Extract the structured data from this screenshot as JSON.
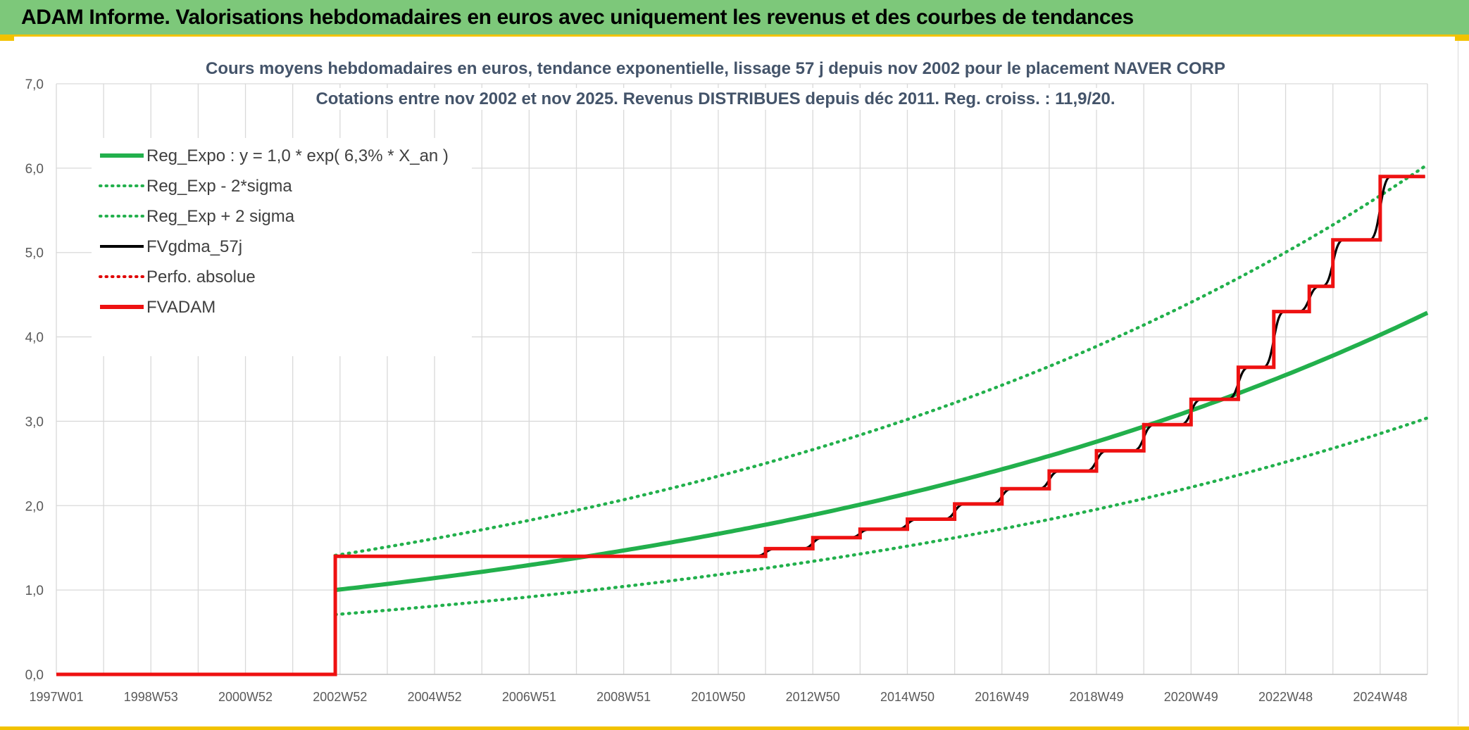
{
  "header": {
    "title": "ADAM Informe. Valorisations hebdomadaires en euros avec uniquement les revenus et des courbes de tendances"
  },
  "chart_data": {
    "type": "line",
    "title": "Cours moyens hebdomadaires en euros, tendance exponentielle, lissage 57 j depuis nov 2002 pour le placement NAVER CORP",
    "subtitle": "Cotations entre nov 2002 et nov 2025. Revenus DISTRIBUES depuis déc 2011. Reg. croiss. : 11,9/20.",
    "xlabel": "",
    "ylabel": "",
    "x_ticks": [
      "1997W01",
      "1998W53",
      "2000W52",
      "2002W52",
      "2004W52",
      "2006W51",
      "2008W51",
      "2010W50",
      "2012W50",
      "2014W50",
      "2016W49",
      "2018W49",
      "2020W49",
      "2022W48",
      "2024W48"
    ],
    "x_tick_years": [
      1997.0,
      1999.0,
      2001.0,
      2003.0,
      2005.0,
      2007.0,
      2009.0,
      2011.0,
      2013.0,
      2015.0,
      2017.0,
      2019.0,
      2021.0,
      2023.0,
      2025.0
    ],
    "xlim": [
      1997.0,
      2026.0
    ],
    "ylim": [
      0,
      7
    ],
    "y_ticks": [
      "0,0",
      "1,0",
      "2,0",
      "3,0",
      "4,0",
      "5,0",
      "6,0",
      "7,0"
    ],
    "grid": true,
    "legend_position": "top-left",
    "regression": {
      "start": 2002.9,
      "base": 1.0,
      "rate_pct_per_year": 6.3,
      "band_factor": 1.41
    },
    "legend": [
      {
        "label": "Reg_Expo : y = 1,0 * exp( 6,3% *  X_an )",
        "color": "#22b04c",
        "style": "solid-thick"
      },
      {
        "label": "Reg_Exp - 2*sigma",
        "color": "#22b04c",
        "style": "dotted"
      },
      {
        "label": "Reg_Exp + 2 sigma",
        "color": "#22b04c",
        "style": "dotted"
      },
      {
        "label": "FVgdma_57j",
        "color": "#000000",
        "style": "solid"
      },
      {
        "label": "Perfo. absolue",
        "color": "#e00000",
        "style": "dotted"
      },
      {
        "label": "FVADAM",
        "color": "#ee1111",
        "style": "solid-thick"
      }
    ],
    "series": [
      {
        "name": "FVADAM",
        "type": "step",
        "points": [
          [
            1997.0,
            0.0
          ],
          [
            2002.9,
            0.0
          ],
          [
            2002.9,
            1.4
          ],
          [
            2012.0,
            1.4
          ],
          [
            2012.0,
            1.49
          ],
          [
            2013.0,
            1.49
          ],
          [
            2013.0,
            1.62
          ],
          [
            2014.0,
            1.62
          ],
          [
            2014.0,
            1.72
          ],
          [
            2015.0,
            1.72
          ],
          [
            2015.0,
            1.84
          ],
          [
            2016.0,
            1.84
          ],
          [
            2016.0,
            2.02
          ],
          [
            2017.0,
            2.02
          ],
          [
            2017.0,
            2.2
          ],
          [
            2018.0,
            2.2
          ],
          [
            2018.0,
            2.41
          ],
          [
            2019.0,
            2.41
          ],
          [
            2019.0,
            2.65
          ],
          [
            2020.0,
            2.65
          ],
          [
            2020.0,
            2.96
          ],
          [
            2021.0,
            2.96
          ],
          [
            2021.0,
            3.26
          ],
          [
            2022.0,
            3.26
          ],
          [
            2022.0,
            3.64
          ],
          [
            2022.75,
            3.64
          ],
          [
            2022.75,
            4.3
          ],
          [
            2023.5,
            4.3
          ],
          [
            2023.5,
            4.6
          ],
          [
            2024.0,
            4.6
          ],
          [
            2024.0,
            5.15
          ],
          [
            2025.0,
            5.15
          ],
          [
            2025.0,
            5.9
          ],
          [
            2025.95,
            5.9
          ]
        ]
      },
      {
        "name": "FVgdma_57j",
        "type": "smoothed-step",
        "points": [
          [
            1997.0,
            0.0
          ],
          [
            2002.9,
            0.0
          ],
          [
            2002.9,
            1.4
          ],
          [
            2012.0,
            1.4
          ],
          [
            2012.0,
            1.49
          ],
          [
            2013.0,
            1.49
          ],
          [
            2013.0,
            1.62
          ],
          [
            2014.0,
            1.62
          ],
          [
            2014.0,
            1.72
          ],
          [
            2015.0,
            1.72
          ],
          [
            2015.0,
            1.84
          ],
          [
            2016.0,
            1.84
          ],
          [
            2016.0,
            2.02
          ],
          [
            2017.0,
            2.02
          ],
          [
            2017.0,
            2.2
          ],
          [
            2018.0,
            2.2
          ],
          [
            2018.0,
            2.41
          ],
          [
            2019.0,
            2.41
          ],
          [
            2019.0,
            2.65
          ],
          [
            2020.0,
            2.65
          ],
          [
            2020.0,
            2.96
          ],
          [
            2021.0,
            2.96
          ],
          [
            2021.0,
            3.26
          ],
          [
            2022.0,
            3.26
          ],
          [
            2022.0,
            3.64
          ],
          [
            2022.75,
            3.64
          ],
          [
            2022.75,
            4.3
          ],
          [
            2023.5,
            4.3
          ],
          [
            2023.5,
            4.6
          ],
          [
            2024.0,
            4.6
          ],
          [
            2024.0,
            5.15
          ],
          [
            2025.0,
            5.15
          ],
          [
            2025.0,
            5.9
          ],
          [
            2025.95,
            5.9
          ]
        ]
      }
    ]
  }
}
